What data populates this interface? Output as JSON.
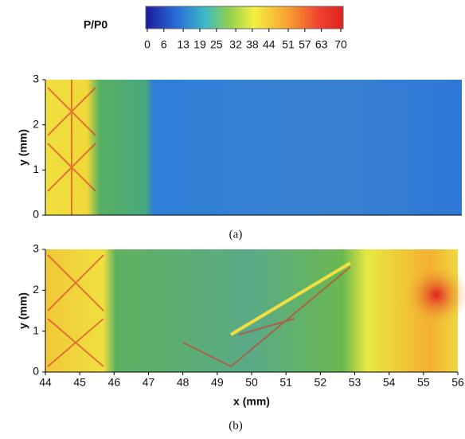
{
  "colorbar": {
    "label": "P/P0",
    "lim": [
      0,
      70
    ],
    "ticks": [
      0,
      6,
      13,
      19,
      25,
      32,
      38,
      44,
      51,
      57,
      63,
      70
    ]
  },
  "panels": [
    {
      "caption": "(a)",
      "ylabel": "y (mm)",
      "ylim": [
        0,
        3
      ],
      "yticks": [
        0,
        1,
        2,
        3
      ]
    },
    {
      "caption": "(b)",
      "ylabel": "y (mm)",
      "ylim": [
        0,
        3
      ],
      "yticks": [
        0,
        1,
        2,
        3
      ],
      "xlabel": "x (mm)",
      "xlim": [
        44,
        56
      ],
      "xticks": [
        44,
        45,
        46,
        47,
        48,
        49,
        50,
        51,
        52,
        53,
        54,
        55,
        56
      ]
    }
  ]
}
